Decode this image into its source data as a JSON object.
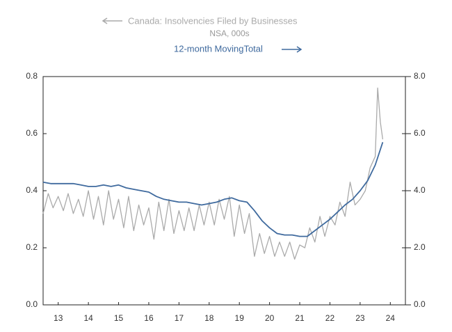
{
  "chart_data": {
    "type": "line",
    "title": "Canada: Insolvencies Filed by Businesses",
    "subtitle": "NSA, 000s",
    "series": [
      {
        "name": "Canada: Insolvencies Filed by Businesses",
        "color": "#aaaaaa",
        "axis": "y",
        "x": [
          13.0,
          13.17,
          13.33,
          13.5,
          13.67,
          13.83,
          14.0,
          14.17,
          14.33,
          14.5,
          14.67,
          14.83,
          15.0,
          15.17,
          15.33,
          15.5,
          15.67,
          15.83,
          16.0,
          16.17,
          16.33,
          16.5,
          16.67,
          16.83,
          17.0,
          17.17,
          17.33,
          17.5,
          17.67,
          17.83,
          18.0,
          18.17,
          18.33,
          18.5,
          18.67,
          18.83,
          19.0,
          19.17,
          19.33,
          19.5,
          19.67,
          19.83,
          20.0,
          20.17,
          20.33,
          20.5,
          20.67,
          20.83,
          21.0,
          21.17,
          21.33,
          21.5,
          21.67,
          21.83,
          22.0,
          22.17,
          22.33,
          22.5,
          22.67,
          22.83,
          23.0,
          23.17,
          23.33,
          23.5,
          23.67,
          23.83,
          24.0,
          24.08,
          24.17,
          24.25
        ],
        "values": [
          0.32,
          0.39,
          0.34,
          0.38,
          0.33,
          0.39,
          0.32,
          0.37,
          0.31,
          0.4,
          0.3,
          0.38,
          0.28,
          0.4,
          0.3,
          0.37,
          0.27,
          0.38,
          0.26,
          0.35,
          0.28,
          0.34,
          0.23,
          0.36,
          0.26,
          0.37,
          0.25,
          0.33,
          0.26,
          0.34,
          0.26,
          0.35,
          0.28,
          0.36,
          0.28,
          0.37,
          0.3,
          0.38,
          0.24,
          0.35,
          0.25,
          0.32,
          0.17,
          0.25,
          0.18,
          0.24,
          0.17,
          0.22,
          0.17,
          0.22,
          0.16,
          0.21,
          0.2,
          0.27,
          0.22,
          0.31,
          0.24,
          0.31,
          0.28,
          0.36,
          0.31,
          0.43,
          0.35,
          0.37,
          0.4,
          0.48,
          0.52,
          0.76,
          0.64,
          0.58
        ]
      },
      {
        "name": "12-month MovingTotal",
        "color": "#3f6a9e",
        "axis": "y2",
        "x": [
          13.0,
          13.25,
          13.5,
          13.75,
          14.0,
          14.25,
          14.5,
          14.75,
          15.0,
          15.25,
          15.5,
          15.75,
          16.0,
          16.25,
          16.5,
          16.75,
          17.0,
          17.25,
          17.5,
          17.75,
          18.0,
          18.25,
          18.5,
          18.75,
          19.0,
          19.25,
          19.5,
          19.75,
          20.0,
          20.25,
          20.5,
          20.75,
          21.0,
          21.25,
          21.5,
          21.75,
          22.0,
          22.25,
          22.5,
          22.75,
          23.0,
          23.25,
          23.5,
          23.75,
          24.0,
          24.25
        ],
        "values": [
          4.3,
          4.25,
          4.25,
          4.25,
          4.25,
          4.2,
          4.15,
          4.15,
          4.2,
          4.15,
          4.2,
          4.1,
          4.05,
          4.0,
          3.95,
          3.8,
          3.7,
          3.65,
          3.6,
          3.6,
          3.55,
          3.5,
          3.55,
          3.6,
          3.7,
          3.75,
          3.65,
          3.6,
          3.3,
          2.95,
          2.7,
          2.5,
          2.45,
          2.45,
          2.4,
          2.4,
          2.6,
          2.8,
          3.0,
          3.25,
          3.5,
          3.7,
          4.0,
          4.35,
          4.9,
          5.7
        ]
      }
    ],
    "xlim": [
      13,
      25
    ],
    "xticks": [
      {
        "value": 13.5,
        "label": "13"
      },
      {
        "value": 14.5,
        "label": "14"
      },
      {
        "value": 15.5,
        "label": "15"
      },
      {
        "value": 16.5,
        "label": "16"
      },
      {
        "value": 17.5,
        "label": "17"
      },
      {
        "value": 18.5,
        "label": "18"
      },
      {
        "value": 19.5,
        "label": "19"
      },
      {
        "value": 20.5,
        "label": "20"
      },
      {
        "value": 21.5,
        "label": "21"
      },
      {
        "value": 22.5,
        "label": "22"
      },
      {
        "value": 23.5,
        "label": "23"
      },
      {
        "value": 24.5,
        "label": "24"
      }
    ],
    "ylim": [
      0,
      0.8
    ],
    "yticks": [
      {
        "value": 0,
        "label": "0.0"
      },
      0.2,
      0.4,
      0.6,
      0.8
    ],
    "y2lim": [
      0,
      8
    ],
    "y2ticks": [
      {
        "value": 0,
        "label": "0.0"
      },
      {
        "value": 2,
        "label": "2.0"
      },
      {
        "value": 4,
        "label": "4.0"
      },
      {
        "value": 6,
        "label": "6.0"
      },
      {
        "value": 8,
        "label": "8.0"
      }
    ]
  }
}
